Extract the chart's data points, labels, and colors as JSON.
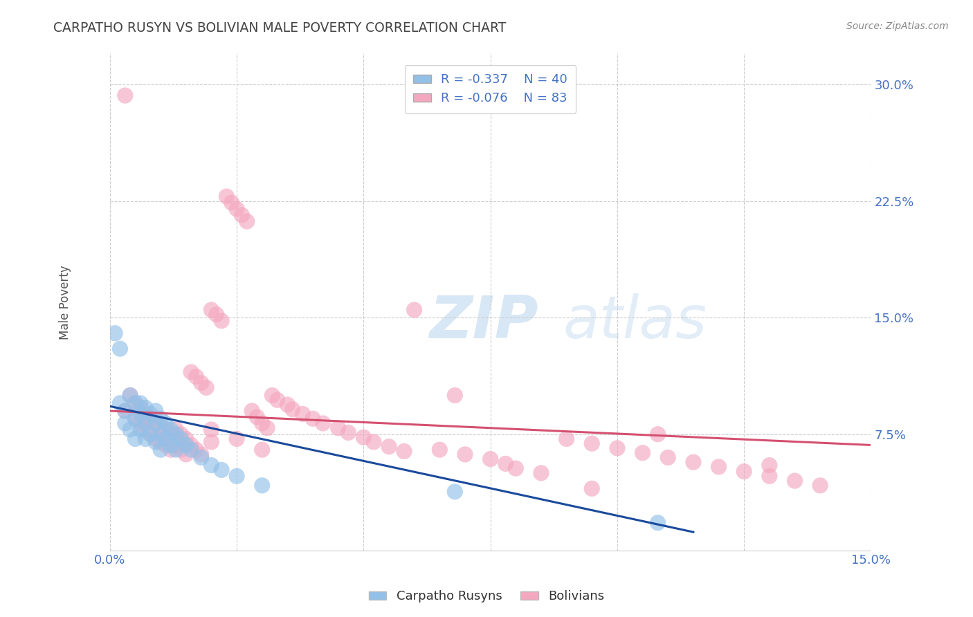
{
  "title": "CARPATHO RUSYN VS BOLIVIAN MALE POVERTY CORRELATION CHART",
  "source": "Source: ZipAtlas.com",
  "ylabel": "Male Poverty",
  "ytick_labels": [
    "7.5%",
    "15.0%",
    "22.5%",
    "30.0%"
  ],
  "ytick_values": [
    0.075,
    0.15,
    0.225,
    0.3
  ],
  "xlim": [
    0.0,
    0.15
  ],
  "ylim": [
    0.0,
    0.32
  ],
  "blue_color": "#92C0E8",
  "pink_color": "#F4A8C0",
  "blue_line_color": "#1A4A9C",
  "pink_line_color": "#D45070",
  "legend_R_blue": "R = -0.337",
  "legend_N_blue": "N = 40",
  "legend_R_pink": "R = -0.076",
  "legend_N_pink": "N = 83",
  "legend_label_blue": "Carpatho Rusyns",
  "legend_label_pink": "Bolivians",
  "background_color": "#ffffff",
  "grid_color": "#cccccc",
  "title_color": "#444444",
  "axis_label_color": "#555555",
  "tick_color": "#4472c4",
  "blue_scatter_x": [
    0.001,
    0.002,
    0.002,
    0.003,
    0.003,
    0.004,
    0.004,
    0.005,
    0.005,
    0.005,
    0.006,
    0.006,
    0.006,
    0.007,
    0.007,
    0.007,
    0.008,
    0.008,
    0.009,
    0.009,
    0.009,
    0.01,
    0.01,
    0.01,
    0.011,
    0.011,
    0.012,
    0.012,
    0.013,
    0.013,
    0.014,
    0.015,
    0.016,
    0.018,
    0.02,
    0.022,
    0.025,
    0.03,
    0.068,
    0.108
  ],
  "blue_scatter_y": [
    0.14,
    0.13,
    0.095,
    0.09,
    0.082,
    0.1,
    0.078,
    0.095,
    0.085,
    0.072,
    0.095,
    0.088,
    0.078,
    0.092,
    0.082,
    0.072,
    0.088,
    0.075,
    0.09,
    0.082,
    0.07,
    0.085,
    0.075,
    0.065,
    0.082,
    0.072,
    0.078,
    0.068,
    0.075,
    0.065,
    0.072,
    0.068,
    0.065,
    0.06,
    0.055,
    0.052,
    0.048,
    0.042,
    0.038,
    0.018
  ],
  "pink_scatter_x": [
    0.003,
    0.004,
    0.005,
    0.005,
    0.006,
    0.006,
    0.007,
    0.007,
    0.008,
    0.008,
    0.009,
    0.009,
    0.01,
    0.01,
    0.011,
    0.011,
    0.012,
    0.012,
    0.013,
    0.013,
    0.014,
    0.014,
    0.015,
    0.015,
    0.016,
    0.016,
    0.017,
    0.017,
    0.018,
    0.018,
    0.019,
    0.02,
    0.02,
    0.021,
    0.022,
    0.023,
    0.024,
    0.025,
    0.026,
    0.027,
    0.028,
    0.029,
    0.03,
    0.031,
    0.032,
    0.033,
    0.035,
    0.036,
    0.038,
    0.04,
    0.042,
    0.045,
    0.047,
    0.05,
    0.052,
    0.055,
    0.058,
    0.06,
    0.065,
    0.068,
    0.07,
    0.075,
    0.078,
    0.08,
    0.085,
    0.09,
    0.095,
    0.1,
    0.105,
    0.108,
    0.11,
    0.115,
    0.12,
    0.125,
    0.13,
    0.135,
    0.14,
    0.003,
    0.02,
    0.025,
    0.03,
    0.095,
    0.13
  ],
  "pink_scatter_y": [
    0.293,
    0.1,
    0.095,
    0.085,
    0.092,
    0.082,
    0.088,
    0.078,
    0.085,
    0.075,
    0.082,
    0.072,
    0.08,
    0.07,
    0.078,
    0.068,
    0.075,
    0.065,
    0.078,
    0.068,
    0.075,
    0.065,
    0.072,
    0.062,
    0.115,
    0.068,
    0.112,
    0.065,
    0.108,
    0.062,
    0.105,
    0.155,
    0.07,
    0.152,
    0.148,
    0.228,
    0.224,
    0.22,
    0.216,
    0.212,
    0.09,
    0.086,
    0.082,
    0.079,
    0.1,
    0.097,
    0.094,
    0.091,
    0.088,
    0.085,
    0.082,
    0.079,
    0.076,
    0.073,
    0.07,
    0.067,
    0.064,
    0.155,
    0.065,
    0.1,
    0.062,
    0.059,
    0.056,
    0.053,
    0.05,
    0.072,
    0.069,
    0.066,
    0.063,
    0.075,
    0.06,
    0.057,
    0.054,
    0.051,
    0.048,
    0.045,
    0.042,
    0.09,
    0.078,
    0.072,
    0.065,
    0.04,
    0.055
  ],
  "blue_trendline_x": [
    0.0,
    0.115
  ],
  "blue_trendline_y": [
    0.093,
    0.012
  ],
  "pink_trendline_x": [
    0.0,
    0.15
  ],
  "pink_trendline_y": [
    0.09,
    0.068
  ]
}
